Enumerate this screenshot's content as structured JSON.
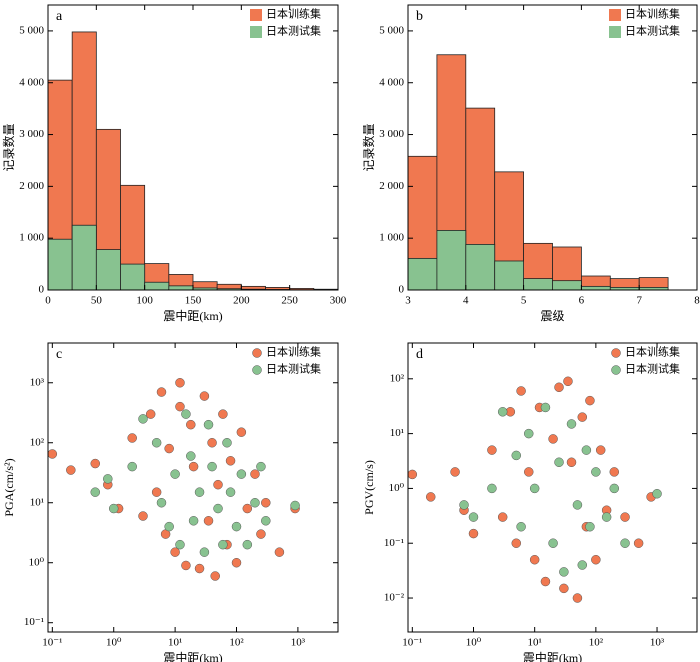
{
  "chart_data": [
    {
      "type": "histogram",
      "panel": "a",
      "xlabel": "震中距(km)",
      "ylabel": "记录数量",
      "bins": [
        0,
        25,
        50,
        75,
        100,
        125,
        150,
        175,
        200,
        225,
        250,
        275,
        300
      ],
      "series": [
        {
          "name": "日本训练集",
          "color": "#f07850",
          "values": [
            4050,
            4980,
            3100,
            2020,
            510,
            300,
            160,
            110,
            70,
            50,
            30,
            15
          ]
        },
        {
          "name": "日本测试集",
          "color": "#88c290",
          "values": [
            980,
            1250,
            780,
            500,
            150,
            80,
            40,
            25,
            15,
            10,
            5,
            3
          ]
        }
      ],
      "xlim": [
        0,
        300
      ],
      "xticks": [
        0,
        50,
        100,
        150,
        200,
        250,
        300
      ],
      "ylim": [
        0,
        5500
      ],
      "yticks": [
        0,
        {
          "value": 1000,
          "label": "1 000"
        },
        {
          "value": 2000,
          "label": "2 000"
        },
        {
          "value": 3000,
          "label": "3 000"
        },
        {
          "value": 4000,
          "label": "4 000"
        },
        {
          "value": 5000,
          "label": "5 000"
        }
      ],
      "legend": "upper right"
    },
    {
      "type": "histogram",
      "panel": "b",
      "xlabel": "震级",
      "ylabel": "记录数量",
      "bins": [
        3,
        3.5,
        4,
        4.5,
        5,
        5.5,
        6,
        6.5,
        7,
        7.5
      ],
      "series": [
        {
          "name": "日本训练集",
          "color": "#f07850",
          "values": [
            2580,
            4540,
            3510,
            2280,
            900,
            830,
            270,
            220,
            240
          ]
        },
        {
          "name": "日本测试集",
          "color": "#88c290",
          "values": [
            610,
            1150,
            880,
            560,
            220,
            180,
            70,
            50,
            50
          ]
        }
      ],
      "xlim": [
        3,
        8
      ],
      "xticks": [
        3,
        4,
        5,
        6,
        7,
        8
      ],
      "ylim": [
        0,
        5500
      ],
      "yticks": [
        0,
        {
          "value": 1000,
          "label": "1 000"
        },
        {
          "value": 2000,
          "label": "2 000"
        },
        {
          "value": 3000,
          "label": "3 000"
        },
        {
          "value": 4000,
          "label": "4 000"
        },
        {
          "value": 5000,
          "label": "5 000"
        }
      ],
      "legend": "upper right"
    },
    {
      "type": "scatter",
      "panel": "c",
      "xlabel": "震中距(km)",
      "ylabel": "PGA(cm/s²)",
      "xscale": "log",
      "yscale": "log",
      "series": [
        {
          "name": "日本训练集",
          "color": "#f07850",
          "x": [
            0.1,
            0.2,
            0.5,
            0.8,
            1.2,
            2,
            3,
            4,
            5,
            6,
            7,
            8,
            10,
            12,
            12,
            15,
            18,
            20,
            25,
            30,
            35,
            40,
            45,
            50,
            60,
            70,
            80,
            100,
            120,
            150,
            200,
            250,
            300,
            500,
            900
          ],
          "values": [
            65,
            35,
            45,
            20,
            8,
            120,
            6,
            300,
            15,
            700,
            3,
            80,
            1.5,
            1000,
            400,
            0.9,
            200,
            40,
            0.8,
            600,
            5,
            100,
            0.6,
            20,
            300,
            2,
            50,
            1,
            150,
            8,
            30,
            3,
            10,
            1.5,
            8
          ]
        },
        {
          "name": "日本测试集",
          "color": "#88c290",
          "x": [
            0.5,
            0.8,
            1,
            2,
            3,
            5,
            6,
            8,
            10,
            12,
            15,
            18,
            20,
            25,
            30,
            35,
            40,
            50,
            60,
            70,
            80,
            100,
            120,
            150,
            200,
            250,
            300,
            900
          ],
          "values": [
            15,
            25,
            8,
            40,
            250,
            100,
            10,
            4,
            30,
            2,
            300,
            60,
            5,
            15,
            1.5,
            200,
            40,
            8,
            2,
            100,
            15,
            4,
            30,
            2,
            10,
            40,
            5,
            9
          ]
        }
      ],
      "xlim": [
        0.085,
        4500
      ],
      "xticks": [
        {
          "value": 0.1,
          "label": "10⁻¹"
        },
        {
          "value": 1,
          "label": "10⁰"
        },
        {
          "value": 10,
          "label": "10¹"
        },
        {
          "value": 100,
          "label": "10²"
        },
        {
          "value": 1000,
          "label": "10³"
        }
      ],
      "ylim": [
        0.07,
        4600
      ],
      "yticks": [
        {
          "value": 0.1,
          "label": "10⁻¹"
        },
        {
          "value": 1,
          "label": "10⁰"
        },
        {
          "value": 10,
          "label": "10¹"
        },
        {
          "value": 100,
          "label": "10²"
        },
        {
          "value": 1000,
          "label": "10³"
        }
      ],
      "legend": "upper right"
    },
    {
      "type": "scatter",
      "panel": "d",
      "xlabel": "震中距(km)",
      "ylabel": "PGV(cm/s)",
      "xscale": "log",
      "yscale": "log",
      "series": [
        {
          "name": "日本训练集",
          "color": "#f07850",
          "x": [
            0.1,
            0.2,
            0.5,
            0.7,
            1,
            2,
            3,
            4,
            5,
            6,
            8,
            10,
            12,
            15,
            20,
            25,
            30,
            35,
            40,
            50,
            60,
            70,
            80,
            100,
            120,
            150,
            200,
            300,
            500,
            800
          ],
          "values": [
            1.8,
            0.7,
            2,
            0.4,
            0.15,
            5,
            0.3,
            25,
            0.1,
            60,
            2,
            0.05,
            30,
            0.02,
            8,
            70,
            0.015,
            90,
            3,
            0.01,
            20,
            0.2,
            40,
            0.05,
            5,
            0.4,
            2,
            0.3,
            0.1,
            0.7
          ]
        },
        {
          "name": "日本测试集",
          "color": "#88c290",
          "x": [
            0.7,
            1,
            2,
            3,
            5,
            6,
            8,
            10,
            15,
            20,
            25,
            30,
            40,
            50,
            60,
            70,
            80,
            100,
            150,
            200,
            300,
            1000
          ],
          "values": [
            0.5,
            0.3,
            1,
            25,
            4,
            0.2,
            10,
            1,
            30,
            0.1,
            3,
            0.03,
            15,
            0.5,
            0.04,
            5,
            0.2,
            2,
            0.3,
            1,
            0.1,
            0.8
          ]
        }
      ],
      "xlim": [
        0.085,
        4500
      ],
      "xticks": [
        {
          "value": 0.1,
          "label": "10⁻¹"
        },
        {
          "value": 1,
          "label": "10⁰"
        },
        {
          "value": 10,
          "label": "10¹"
        },
        {
          "value": 100,
          "label": "10²"
        },
        {
          "value": 1000,
          "label": "10³"
        }
      ],
      "ylim": [
        0.0024,
        450
      ],
      "yticks": [
        {
          "value": 0.01,
          "label": "10⁻²"
        },
        {
          "value": 0.1,
          "label": "10⁻¹"
        },
        {
          "value": 1,
          "label": "10⁰"
        },
        {
          "value": 10,
          "label": "10¹"
        },
        {
          "value": 100,
          "label": "10²"
        }
      ],
      "legend": "upper right"
    }
  ]
}
